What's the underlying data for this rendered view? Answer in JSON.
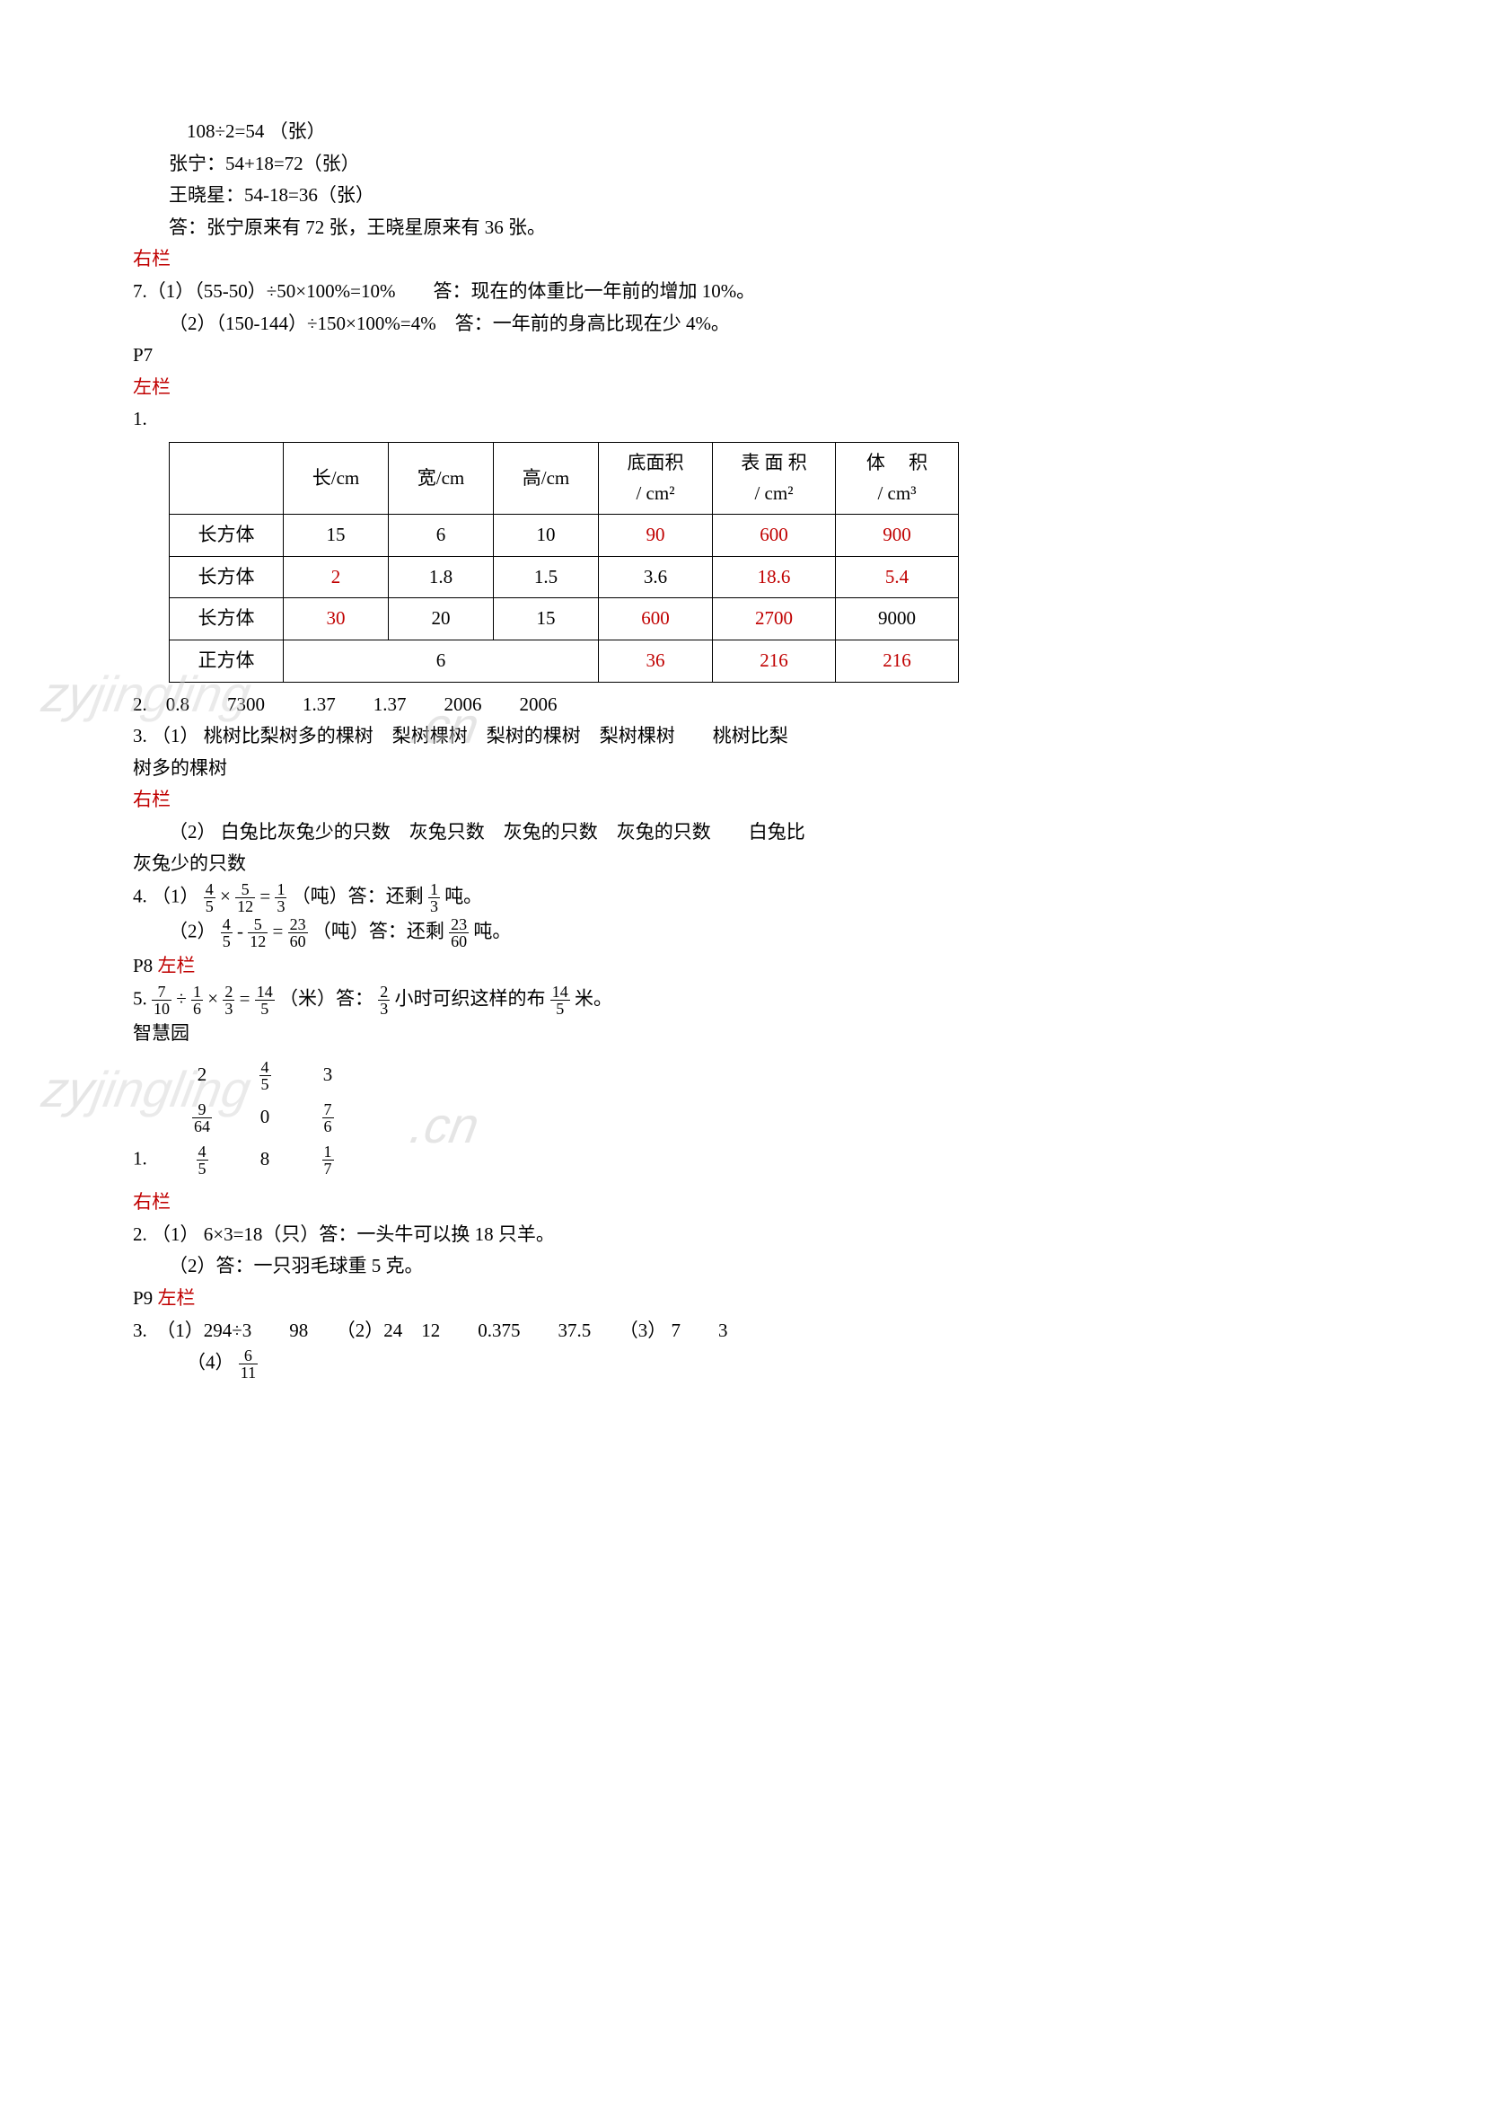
{
  "intro": {
    "l1": "108÷2=54 （张）",
    "l2": "张宁：54+18=72（张）",
    "l3": "王晓星：54-18=36（张）",
    "l4": "答：张宁原来有 72 张，王晓星原来有 36 张。"
  },
  "右栏1": "右栏",
  "q7": {
    "l1": "7.（1）（55-50）÷50×100%=10%　　答：现在的体重比一年前的增加 10%。",
    "l2": "（2）（150-144）÷150×100%=4%　答：一年前的身高比现在少 4%。"
  },
  "p7": "P7",
  "左栏1": "左栏",
  "q1label": "1.",
  "table": {
    "headers": [
      "",
      "长/cm",
      "宽/cm",
      "高/cm",
      "底面积\n/ cm²",
      "表 面 积\n/ cm²",
      "体　 积\n/ cm³"
    ],
    "rows": [
      {
        "cells": [
          "长方体",
          "15",
          "6",
          "10",
          "90",
          "600",
          "900"
        ],
        "red": [
          false,
          false,
          false,
          false,
          true,
          true,
          true
        ]
      },
      {
        "cells": [
          "长方体",
          "2",
          "1.8",
          "1.5",
          "3.6",
          "18.6",
          "5.4"
        ],
        "red": [
          false,
          true,
          false,
          false,
          false,
          true,
          true
        ]
      },
      {
        "cells": [
          "长方体",
          "30",
          "20",
          "15",
          "600",
          "2700",
          "9000"
        ],
        "red": [
          false,
          true,
          false,
          false,
          true,
          true,
          false
        ]
      },
      {
        "cells": [
          "正方体",
          "6",
          "",
          "",
          "36",
          "216",
          "216"
        ],
        "colspan": [
          1,
          3,
          0,
          0,
          1,
          1,
          1
        ],
        "red": [
          false,
          false,
          false,
          false,
          true,
          true,
          true
        ]
      }
    ],
    "col_widths": [
      "90px",
      "80px",
      "80px",
      "80px",
      "90px",
      "100px",
      "100px"
    ]
  },
  "q2": "2.　0.8　　7300　　1.37　　1.37　　2006　　2006",
  "q3": {
    "l1": "3. （1） 桃树比梨树多的棵树　梨树棵树　梨树的棵树　梨树棵树　　桃树比梨",
    "l2": "树多的棵树"
  },
  "右栏2": "右栏",
  "q3b": {
    "l1": "（2） 白兔比灰兔少的只数　灰兔只数　灰兔的只数　灰兔的只数　　白兔比",
    "l2": "灰兔少的只数"
  },
  "q4": {
    "l1_pre": "4. （1）",
    "f1n": "4",
    "f1d": "5",
    "op1": "×",
    "f2n": "5",
    "f2d": "12",
    "eq1": "=",
    "f3n": "1",
    "f3d": "3",
    "l1_mid": "（吨）答：还剩",
    "f4n": "1",
    "f4d": "3",
    "l1_end": "吨。",
    "l2_pre": "（2）",
    "g1n": "4",
    "g1d": "5",
    "op2": "-",
    "g2n": "5",
    "g2d": "12",
    "eq2": "=",
    "g3n": "23",
    "g3d": "60",
    "l2_mid": "（吨）答：还剩",
    "g4n": "23",
    "g4d": "60",
    "l2_end": "吨。"
  },
  "p8": "P8 ",
  "左栏2": "左栏",
  "q5": {
    "pre": "5. ",
    "h1n": "7",
    "h1d": "10",
    "op1": "÷",
    "h2n": "1",
    "h2d": "6",
    "op2": "×",
    "h3n": "2",
    "h3d": "3",
    "eq": "=",
    "h4n": "14",
    "h4d": "5",
    "mid1": "（米）答：",
    "h5n": "2",
    "h5d": "3",
    "mid2": "小时可织这样的布",
    "h6n": "14",
    "h6d": "5",
    "end": "米。"
  },
  "智慧园": "智慧园",
  "grid": {
    "pre": "1.　",
    "r1": [
      "2",
      {
        "n": "4",
        "d": "5"
      },
      "3"
    ],
    "r2": [
      {
        "n": "9",
        "d": "64"
      },
      "0",
      {
        "n": "7",
        "d": "6"
      }
    ],
    "r3": [
      {
        "n": "4",
        "d": "5"
      },
      "8",
      {
        "n": "1",
        "d": "7"
      }
    ]
  },
  "右栏3": "右栏",
  "q_r2": {
    "l1": "2. （1） 6×3=18（只）答：一头牛可以换 18 只羊。",
    "l2": "（2）答：一只羽毛球重 5 克。"
  },
  "p9": "P9 ",
  "左栏3": "左栏",
  "q_p9_3": {
    "l1": "3.　（1）294÷3　　98　　（2）24　12　　0.375　　37.5　　（3） 7　　3",
    "l2_pre": "（4）",
    "fn": "6",
    "fd": "11"
  },
  "watermarks": {
    "w1": "zyjingling.cn",
    "w2": "zyjingling.cn"
  }
}
